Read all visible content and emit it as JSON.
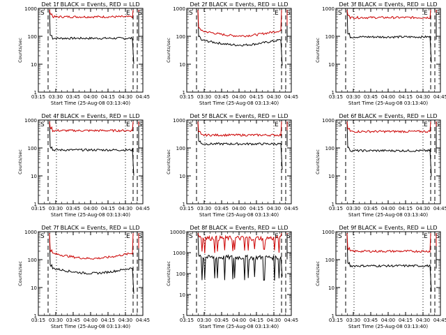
{
  "chart_data": [
    {
      "type": "line",
      "title": "Det 1f BLACK = Events, RED = LLD",
      "xlabel": "Start Time (25-Aug-08 03:13:40)",
      "ylabel": "Counts/sec",
      "ylim_log": [
        1,
        1000
      ],
      "yticks": [
        "1",
        "10",
        "100",
        "1000"
      ],
      "xticks": [
        "03:15",
        "03:30",
        "03:45",
        "04:00",
        "04:15",
        "04:30",
        "04:45"
      ],
      "markers": [
        "S",
        "E",
        "S"
      ],
      "series": [
        {
          "color": "#000000",
          "level": 85,
          "shape": "flat"
        },
        {
          "color": "#cc0000",
          "level": 500,
          "shape": "flat"
        }
      ]
    },
    {
      "type": "line",
      "title": "Det 2f BLACK = Events, RED = LLD",
      "xlabel": "Start Time (25-Aug-08 03:13:40)",
      "ylabel": "Counts/sec",
      "ylim_log": [
        1,
        1000
      ],
      "yticks": [
        "1",
        "10",
        "100",
        "1000"
      ],
      "xticks": [
        "03:15",
        "03:30",
        "03:45",
        "04:00",
        "04:15",
        "04:30",
        "04:45"
      ],
      "markers": [
        "S",
        "E",
        "S"
      ],
      "series": [
        {
          "color": "#000000",
          "level": 75,
          "shape": "dip"
        },
        {
          "color": "#cc0000",
          "level": 160,
          "shape": "dip"
        }
      ]
    },
    {
      "type": "line",
      "title": "Det 3f BLACK = Events, RED = LLD",
      "xlabel": "Start Time (25-Aug-08 03:13:40)",
      "ylabel": "Counts/sec",
      "ylim_log": [
        1,
        1000
      ],
      "yticks": [
        "1",
        "10",
        "100",
        "1000"
      ],
      "xticks": [
        "03:15",
        "03:30",
        "03:45",
        "04:00",
        "04:15",
        "04:30",
        "04:45"
      ],
      "markers": [
        "S",
        "E",
        "S"
      ],
      "series": [
        {
          "color": "#000000",
          "level": 95,
          "shape": "flat"
        },
        {
          "color": "#cc0000",
          "level": 470,
          "shape": "flat"
        }
      ]
    },
    {
      "type": "line",
      "title": "Det 4f BLACK = Events, RED = LLD",
      "xlabel": "Start Time (25-Aug-08 03:13:40)",
      "ylabel": "Counts/sec",
      "ylim_log": [
        1,
        1000
      ],
      "yticks": [
        "1",
        "10",
        "100",
        "1000"
      ],
      "xticks": [
        "03:15",
        "03:30",
        "03:45",
        "04:00",
        "04:15",
        "04:30",
        "04:45"
      ],
      "markers": [
        "S",
        "E",
        "S"
      ],
      "series": [
        {
          "color": "#000000",
          "level": 85,
          "shape": "flat"
        },
        {
          "color": "#cc0000",
          "level": 420,
          "shape": "flat"
        }
      ]
    },
    {
      "type": "line",
      "title": "Det 5f BLACK = Events, RED = LLD",
      "xlabel": "Start Time (25-Aug-08 03:13:40)",
      "ylabel": "Counts/sec",
      "ylim_log": [
        1,
        1000
      ],
      "yticks": [
        "1",
        "10",
        "100",
        "1000"
      ],
      "xticks": [
        "03:15",
        "03:30",
        "03:45",
        "04:00",
        "04:15",
        "04:30",
        "04:45"
      ],
      "markers": [
        "S",
        "E",
        "S"
      ],
      "series": [
        {
          "color": "#000000",
          "level": 140,
          "shape": "flat"
        },
        {
          "color": "#cc0000",
          "level": 290,
          "shape": "flat"
        }
      ]
    },
    {
      "type": "line",
      "title": "Det 6f BLACK = Events, RED = LLD",
      "xlabel": "Start Time (25-Aug-08 03:13:40)",
      "ylabel": "Counts/sec",
      "ylim_log": [
        1,
        1000
      ],
      "yticks": [
        "1",
        "10",
        "100",
        "1000"
      ],
      "xticks": [
        "03:15",
        "03:30",
        "03:45",
        "04:00",
        "04:15",
        "04:30",
        "04:45"
      ],
      "markers": [
        "S",
        "E",
        "S"
      ],
      "series": [
        {
          "color": "#000000",
          "level": 80,
          "shape": "flat"
        },
        {
          "color": "#cc0000",
          "level": 390,
          "shape": "flat"
        }
      ]
    },
    {
      "type": "line",
      "title": "Det 7f BLACK = Events, RED = LLD",
      "xlabel": "Start Time (25-Aug-08 03:13:40)",
      "ylabel": "Counts/sec",
      "ylim_log": [
        1,
        1000
      ],
      "yticks": [
        "1",
        "10",
        "100",
        "1000"
      ],
      "xticks": [
        "03:15",
        "03:30",
        "03:45",
        "04:00",
        "04:15",
        "04:30",
        "04:45"
      ],
      "markers": [
        "S",
        "E",
        "S"
      ],
      "series": [
        {
          "color": "#000000",
          "level": 50,
          "shape": "dip"
        },
        {
          "color": "#cc0000",
          "level": 170,
          "shape": "dip"
        }
      ]
    },
    {
      "type": "line",
      "title": "Det 8f BLACK = Events, RED = LLD",
      "xlabel": "Start Time (25-Aug-08 03:13:40)",
      "ylabel": "Counts/sec",
      "ylim_log": [
        1,
        10000
      ],
      "yticks": [
        "1",
        "10",
        "100",
        "1000",
        "10000"
      ],
      "xticks": [
        "03:15",
        "03:30",
        "03:45",
        "04:00",
        "04:15",
        "04:30",
        "04:45"
      ],
      "markers": [
        "S",
        "E",
        "S"
      ],
      "series": [
        {
          "color": "#000000",
          "level": 600,
          "shape": "spiky"
        },
        {
          "color": "#cc0000",
          "level": 5000,
          "shape": "spiky"
        }
      ]
    },
    {
      "type": "line",
      "title": "Det 9f BLACK = Events, RED = LLD",
      "xlabel": "Start Time (25-Aug-08 03:13:40)",
      "ylabel": "Counts/sec",
      "ylim_log": [
        1,
        1000
      ],
      "yticks": [
        "1",
        "10",
        "100",
        "1000"
      ],
      "xticks": [
        "03:15",
        "03:30",
        "03:45",
        "04:00",
        "04:15",
        "04:30",
        "04:45"
      ],
      "markers": [
        "S",
        "E",
        "S"
      ],
      "series": [
        {
          "color": "#000000",
          "level": 60,
          "shape": "flat"
        },
        {
          "color": "#cc0000",
          "level": 200,
          "shape": "flat"
        }
      ]
    }
  ]
}
